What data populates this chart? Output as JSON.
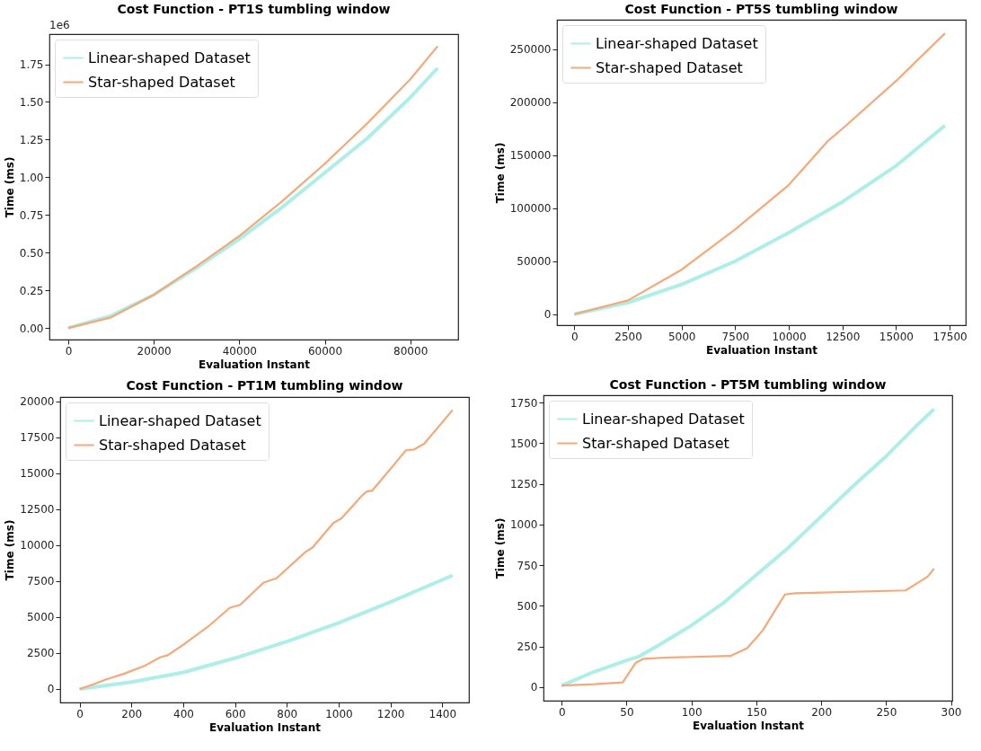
{
  "chart_data": [
    {
      "type": "line",
      "title": "Cost Function  -  PT1S tumbling window",
      "xlabel": "Evaluation Instant",
      "ylabel": "Time (ms)",
      "annotations": [
        "1e6"
      ],
      "legend": "top left",
      "xlim": [
        -4400,
        91200
      ],
      "ylim": [
        -0.077,
        1.95
      ],
      "xticks": [
        0,
        20000,
        40000,
        60000,
        80000
      ],
      "yticks": [
        {
          "value": 0,
          "label": "0.00"
        },
        {
          "value": 0.25,
          "label": "0.25"
        },
        {
          "value": 0.5,
          "label": "0.50"
        },
        {
          "value": 0.75,
          "label": "0.75"
        },
        {
          "value": 1,
          "label": "1.00"
        },
        {
          "value": 1.25,
          "label": "1.25"
        },
        {
          "value": 1.5,
          "label": "1.50"
        },
        {
          "value": 1.75,
          "label": "1.75"
        }
      ],
      "series": [
        {
          "name": "Linear-shaped Dataset",
          "color": "#aeeee8",
          "x": [
            0,
            10000,
            20000,
            30000,
            40000,
            50000,
            60000,
            70000,
            80000,
            86400
          ],
          "values": [
            0,
            0.08,
            0.22,
            0.4,
            0.59,
            0.8,
            1.03,
            1.26,
            1.53,
            1.725
          ]
        },
        {
          "name": "Star-shaped Dataset",
          "color": "#f5a878",
          "x": [
            0,
            10000,
            20000,
            30000,
            40000,
            50000,
            60000,
            70000,
            80000,
            86400
          ],
          "values": [
            0,
            0.07,
            0.22,
            0.41,
            0.61,
            0.84,
            1.09,
            1.36,
            1.65,
            1.87
          ]
        }
      ]
    },
    {
      "type": "line",
      "title": "Cost Function  -  PT5S tumbling window",
      "xlabel": "Evaluation Instant",
      "ylabel": "Time (ms)",
      "legend": "top left",
      "xlim": [
        -810,
        18250
      ],
      "ylim": [
        -10400,
        277800
      ],
      "xticks": [
        0,
        2500,
        5000,
        7500,
        10000,
        12500,
        15000,
        17500
      ],
      "yticks": [
        0,
        50000,
        100000,
        150000,
        200000,
        250000
      ],
      "series": [
        {
          "name": "Linear-shaped Dataset",
          "color": "#aeeee8",
          "x": [
            0,
            2500,
            5000,
            7500,
            10000,
            12500,
            15000,
            17280
          ],
          "values": [
            0,
            11000,
            28000,
            50000,
            77000,
            106000,
            140000,
            178000
          ]
        },
        {
          "name": "Star-shaped Dataset",
          "color": "#f5a878",
          "x": [
            0,
            2500,
            5000,
            7500,
            10000,
            11800,
            12500,
            15000,
            17280
          ],
          "values": [
            0,
            13000,
            42000,
            80000,
            122000,
            163000,
            175000,
            220000,
            265000
          ]
        }
      ]
    },
    {
      "type": "line",
      "title": "Cost Function  -  PT1M tumbling window",
      "xlabel": "Evaluation Instant",
      "ylabel": "Time (ms)",
      "legend": "top left",
      "xlim": [
        -75,
        1503
      ],
      "ylim": [
        -940,
        20300
      ],
      "xticks": [
        0,
        200,
        400,
        600,
        800,
        1000,
        1200,
        1400
      ],
      "yticks": [
        0,
        2500,
        5000,
        7500,
        10000,
        12500,
        15000,
        17500,
        20000
      ],
      "series": [
        {
          "name": "Linear-shaped Dataset",
          "color": "#aeeee8",
          "x": [
            0,
            200,
            400,
            600,
            800,
            1000,
            1200,
            1440
          ],
          "values": [
            0,
            480,
            1150,
            2150,
            3300,
            4600,
            6050,
            7900
          ]
        },
        {
          "name": "Star-shaped Dataset",
          "color": "#f5a878",
          "x": [
            0,
            50,
            100,
            170,
            250,
            310,
            340,
            410,
            500,
            580,
            620,
            710,
            760,
            870,
            900,
            980,
            1010,
            1090,
            1110,
            1130,
            1260,
            1290,
            1330,
            1440
          ],
          "values": [
            0,
            300,
            650,
            1050,
            1600,
            2200,
            2350,
            3200,
            4400,
            5650,
            5850,
            7400,
            7700,
            9500,
            9850,
            11550,
            11850,
            13450,
            13750,
            13800,
            16600,
            16650,
            17050,
            19400
          ]
        }
      ]
    },
    {
      "type": "line",
      "title": "Cost Function  -  PT5M tumbling window",
      "xlabel": "Evaluation Instant",
      "ylabel": "Time (ms)",
      "legend": "top left",
      "xlim": [
        -14,
        301
      ],
      "ylim": [
        -83,
        1795
      ],
      "xticks": [
        0,
        50,
        100,
        150,
        200,
        250,
        300
      ],
      "yticks": [
        0,
        250,
        500,
        750,
        1000,
        1250,
        1500,
        1750
      ],
      "series": [
        {
          "name": "Linear-shaped Dataset",
          "color": "#aeeee8",
          "x": [
            0,
            25,
            50,
            60,
            75,
            100,
            125,
            150,
            175,
            200,
            225,
            250,
            275,
            287
          ],
          "values": [
            10,
            95,
            165,
            190,
            260,
            380,
            520,
            690,
            860,
            1050,
            1240,
            1420,
            1620,
            1710
          ]
        },
        {
          "name": "Star-shaped Dataset",
          "color": "#f5a878",
          "x": [
            0,
            25,
            47,
            57,
            63,
            80,
            130,
            143,
            155,
            172,
            180,
            265,
            282,
            287
          ],
          "values": [
            10,
            18,
            30,
            150,
            175,
            182,
            192,
            240,
            350,
            570,
            578,
            595,
            680,
            730
          ]
        }
      ]
    }
  ]
}
